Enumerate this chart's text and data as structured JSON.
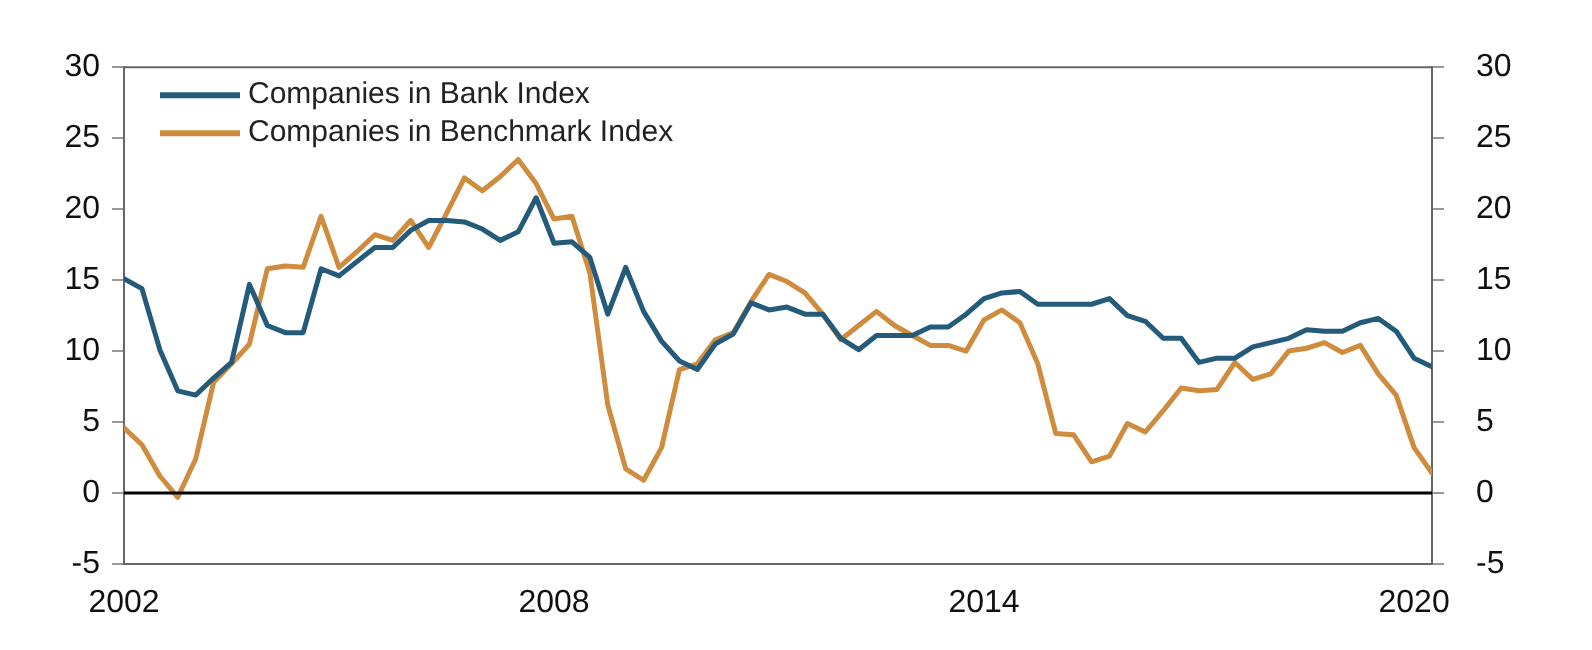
{
  "chart_data": {
    "type": "line",
    "x": [
      2002,
      2002.25,
      2002.5,
      2002.75,
      2003,
      2003.25,
      2003.5,
      2003.75,
      2004,
      2004.25,
      2004.5,
      2004.75,
      2005,
      2005.25,
      2005.5,
      2005.75,
      2006,
      2006.25,
      2006.5,
      2006.75,
      2007,
      2007.25,
      2007.5,
      2007.75,
      2008,
      2008.25,
      2008.5,
      2008.75,
      2009,
      2009.25,
      2009.5,
      2009.75,
      2010,
      2010.25,
      2010.5,
      2010.75,
      2011,
      2011.25,
      2011.5,
      2011.75,
      2012,
      2012.25,
      2012.5,
      2012.75,
      2013,
      2013.25,
      2013.5,
      2013.75,
      2014,
      2014.25,
      2014.5,
      2014.75,
      2015,
      2015.25,
      2015.5,
      2015.75,
      2016,
      2016.25,
      2016.5,
      2016.75,
      2017,
      2017.25,
      2017.5,
      2017.75,
      2018,
      2018.25,
      2018.5,
      2018.75,
      2019,
      2019.25,
      2019.5,
      2019.75,
      2020,
      2020.25
    ],
    "series": [
      {
        "name": "Companies in Bank Index",
        "color": "#245a7a",
        "values": [
          15.1,
          14.4,
          10.1,
          7.2,
          6.9,
          8.1,
          9.2,
          14.7,
          11.8,
          11.3,
          11.3,
          15.8,
          15.3,
          16.3,
          17.3,
          17.3,
          18.5,
          19.2,
          19.2,
          19.1,
          18.6,
          17.8,
          18.4,
          20.8,
          17.6,
          17.7,
          16.6,
          12.6,
          15.9,
          12.8,
          10.7,
          9.3,
          8.7,
          10.5,
          11.2,
          13.4,
          12.9,
          13.1,
          12.6,
          12.6,
          10.9,
          10.1,
          11.1,
          11.1,
          11.1,
          11.7,
          11.7,
          12.6,
          13.7,
          14.1,
          14.2,
          13.3,
          13.3,
          13.3,
          13.3,
          13.7,
          12.5,
          12.1,
          10.9,
          10.9,
          9.2,
          9.5,
          9.5,
          10.3,
          10.6,
          10.9,
          11.5,
          11.4,
          11.4,
          12.0,
          12.3,
          11.4,
          9.5,
          8.9
        ]
      },
      {
        "name": "Companies in Benchmark Index",
        "color": "#d08c3e",
        "values": [
          4.6,
          3.4,
          1.2,
          -0.3,
          2.4,
          7.8,
          9.1,
          10.5,
          15.8,
          16.0,
          15.9,
          19.5,
          15.9,
          17.0,
          18.2,
          17.8,
          19.2,
          17.3,
          19.7,
          22.2,
          21.3,
          22.3,
          23.5,
          21.8,
          19.3,
          19.5,
          15.5,
          6.2,
          1.7,
          0.9,
          3.2,
          8.7,
          9.1,
          10.8,
          11.3,
          13.5,
          15.4,
          14.9,
          14.1,
          12.6,
          10.8,
          11.8,
          12.8,
          11.8,
          11.1,
          10.4,
          10.4,
          10.0,
          12.2,
          12.9,
          12.0,
          9.1,
          4.2,
          4.1,
          2.2,
          2.6,
          4.9,
          4.3,
          5.8,
          7.4,
          7.2,
          7.3,
          9.2,
          8.0,
          8.4,
          10.0,
          10.2,
          10.6,
          9.9,
          10.4,
          8.4,
          6.9,
          3.2,
          1.4
        ]
      }
    ],
    "xlim": [
      2002,
      2020.25
    ],
    "xticks": [
      2002,
      2008,
      2014,
      2020
    ],
    "ylim": [
      -5,
      30
    ],
    "yticks": [
      -5,
      0,
      5,
      10,
      15,
      20,
      25,
      30
    ],
    "y2lim": [
      -5,
      30
    ],
    "y2ticks": [
      -5,
      0,
      5,
      10,
      15,
      20,
      25,
      30
    ],
    "ref_lines": [
      {
        "axis": "y",
        "value": 0,
        "color": "#000000"
      }
    ],
    "grid": false,
    "legend": "top left",
    "marker": "none",
    "line_style": "solid"
  }
}
